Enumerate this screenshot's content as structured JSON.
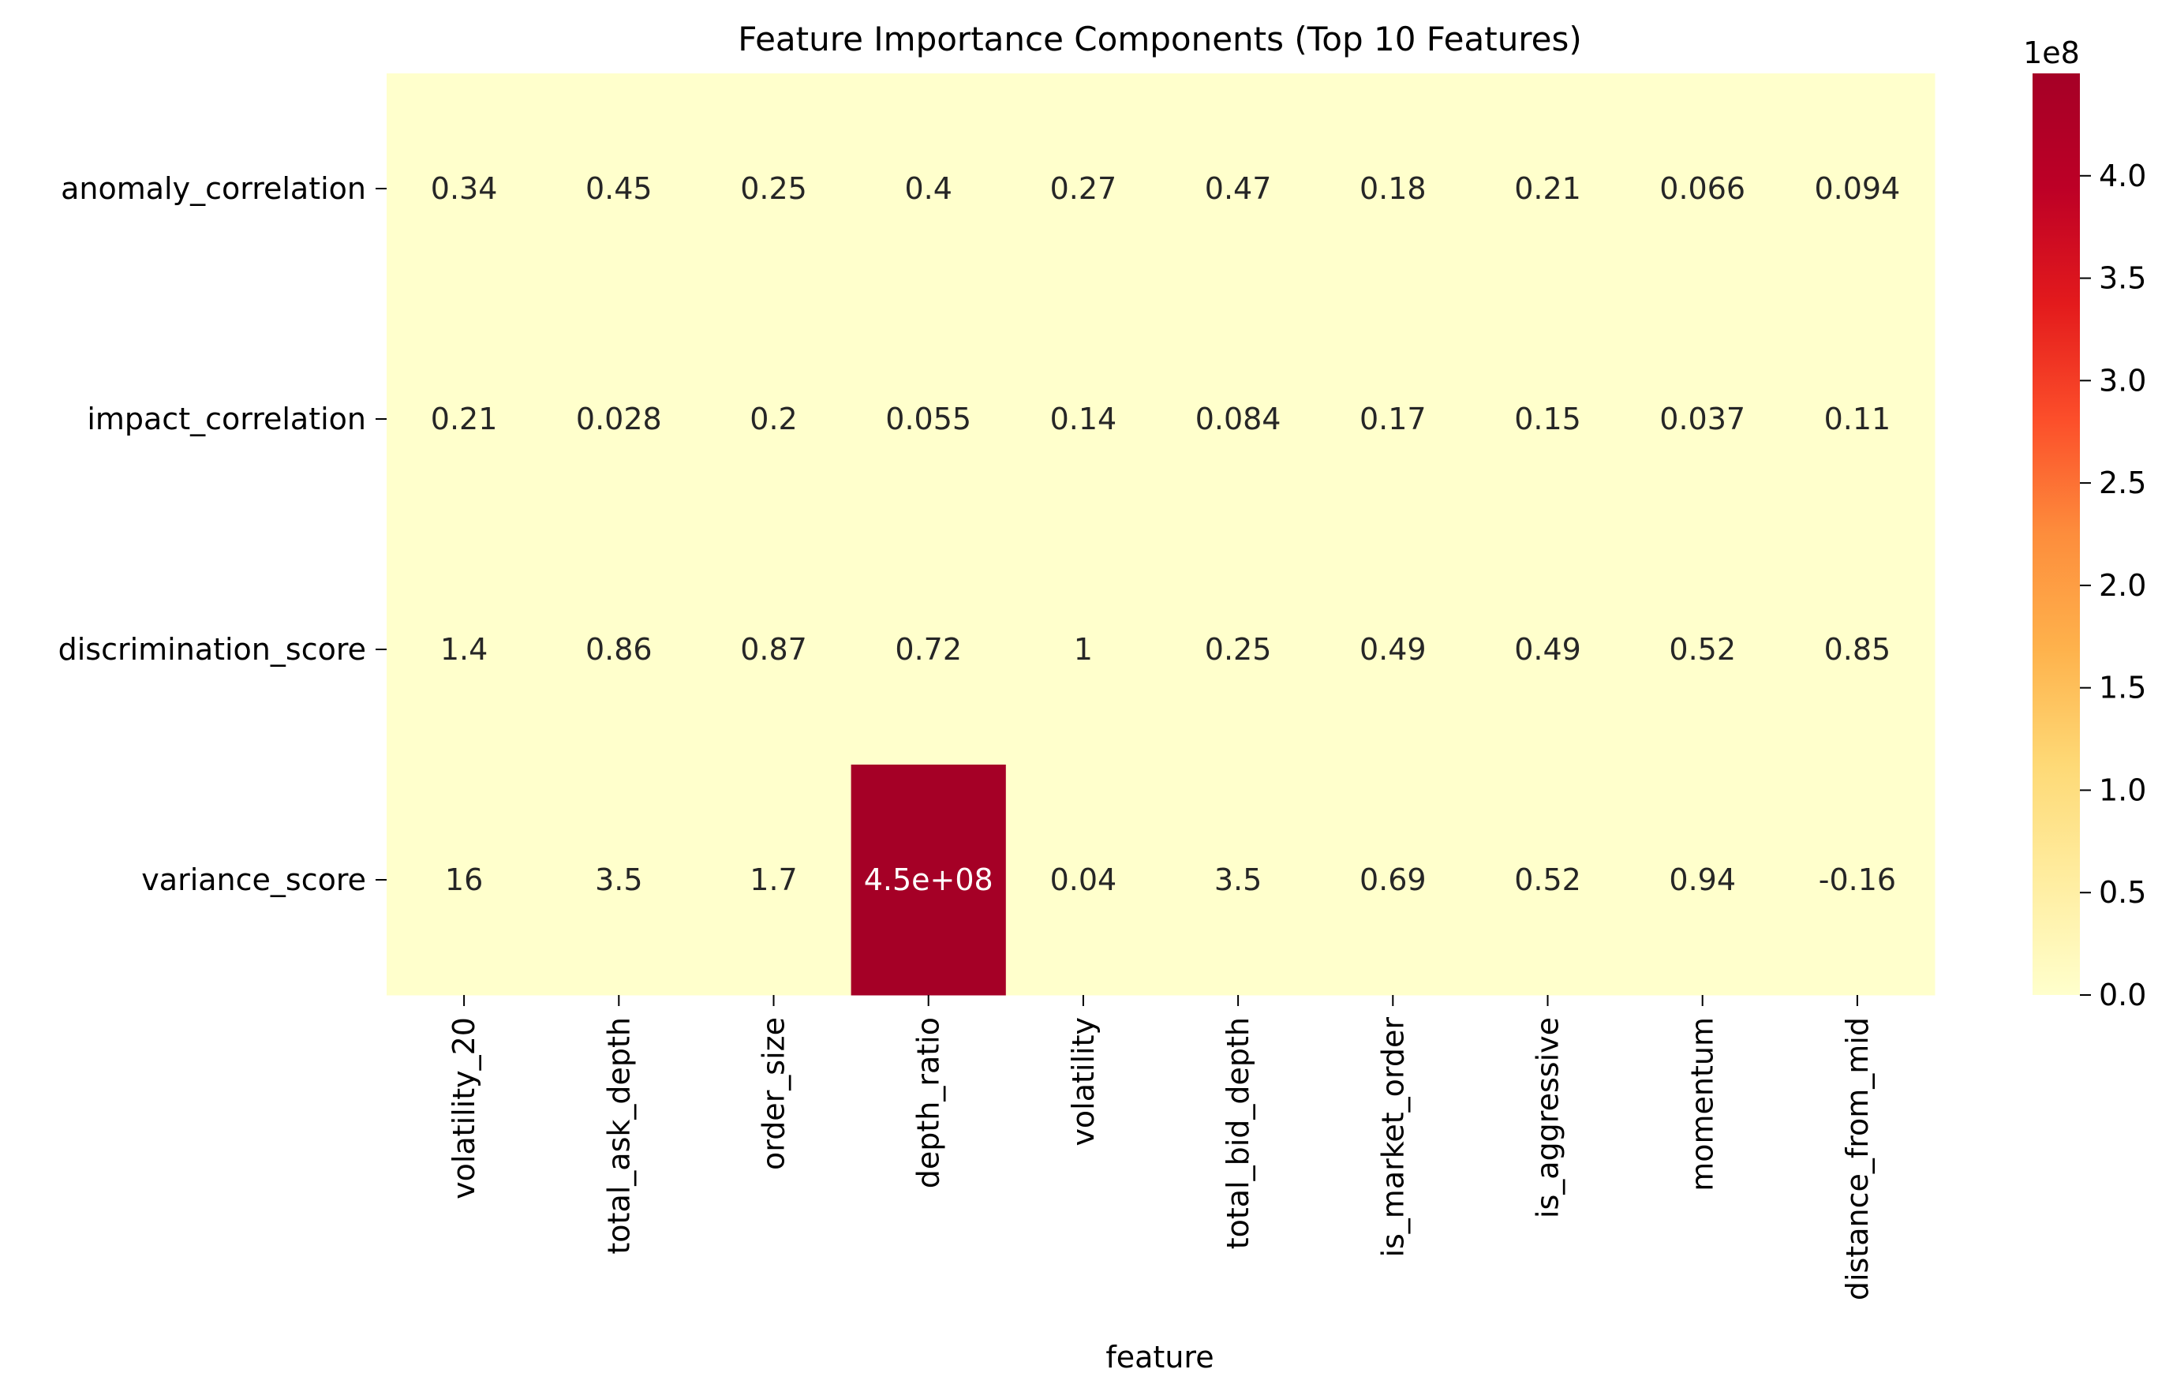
{
  "chart_data": {
    "type": "heatmap",
    "title": "Feature Importance Components (Top 10 Features)",
    "xlabel": "feature",
    "ylabel": "",
    "x_categories": [
      "volatility_20",
      "total_ask_depth",
      "order_size",
      "depth_ratio",
      "volatility",
      "total_bid_depth",
      "is_market_order",
      "is_aggressive",
      "momentum",
      "distance_from_mid"
    ],
    "y_categories": [
      "anomaly_correlation",
      "impact_correlation",
      "discrimination_score",
      "variance_score"
    ],
    "values": [
      [
        0.34,
        0.45,
        0.25,
        0.4,
        0.27,
        0.47,
        0.18,
        0.21,
        0.066,
        0.094
      ],
      [
        0.21,
        0.028,
        0.2,
        0.055,
        0.14,
        0.084,
        0.17,
        0.15,
        0.037,
        0.11
      ],
      [
        1.4,
        0.86,
        0.87,
        0.72,
        1,
        0.25,
        0.49,
        0.49,
        0.52,
        0.85
      ],
      [
        16,
        3.5,
        1.7,
        450000000,
        0.04,
        3.5,
        0.69,
        0.52,
        0.94,
        -0.16
      ]
    ],
    "annotations": [
      [
        "0.34",
        "0.45",
        "0.25",
        "0.4",
        "0.27",
        "0.47",
        "0.18",
        "0.21",
        "0.066",
        "0.094"
      ],
      [
        "0.21",
        "0.028",
        "0.2",
        "0.055",
        "0.14",
        "0.084",
        "0.17",
        "0.15",
        "0.037",
        "0.11"
      ],
      [
        "1.4",
        "0.86",
        "0.87",
        "0.72",
        "1",
        "0.25",
        "0.49",
        "0.49",
        "0.52",
        "0.85"
      ],
      [
        "16",
        "3.5",
        "1.7",
        "4.5e+08",
        "0.04",
        "3.5",
        "0.69",
        "0.52",
        "0.94",
        "-0.16"
      ]
    ],
    "colormap": "YlOrRd",
    "colorbar": {
      "min": 0,
      "max": 450000000,
      "ticks": [
        0,
        50000000,
        100000000,
        150000000,
        200000000,
        250000000,
        300000000,
        350000000,
        400000000
      ],
      "tick_labels": [
        "0.0",
        "0.5",
        "1.0",
        "1.5",
        "2.0",
        "2.5",
        "3.0",
        "3.5",
        "4.0"
      ],
      "offset_label": "1e8"
    },
    "colors": {
      "low": "#ffffcc",
      "high": "#a50026",
      "text_dark": "#262626",
      "text_light": "#ffffff"
    }
  }
}
